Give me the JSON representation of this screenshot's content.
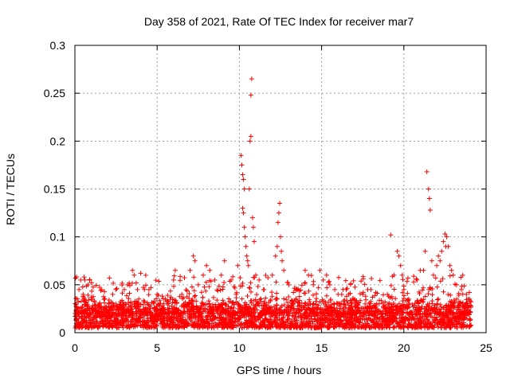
{
  "chart_data": {
    "type": "scatter",
    "title": "Day 358 of 2021, Rate Of TEC Index for receiver mar7",
    "xlabel": "GPS time / hours",
    "ylabel": "ROTI / TECUs",
    "xlim": [
      0,
      25
    ],
    "ylim": [
      0,
      0.3
    ],
    "xticks": [
      0,
      5,
      10,
      15,
      20,
      25
    ],
    "xtick_labels": [
      "0",
      "5",
      "10",
      "15",
      "20",
      "25"
    ],
    "yticks": [
      0,
      0.05,
      0.1,
      0.15,
      0.2,
      0.25,
      0.3
    ],
    "ytick_labels": [
      "0",
      "0.05",
      "0.1",
      "0.15",
      "0.2",
      "0.25",
      "0.3"
    ],
    "grid": true,
    "marker": "plus",
    "color": "#ff0000",
    "series": [
      {
        "name": "ROTI",
        "points": [
          [
            0.1,
            0.02
          ],
          [
            0.2,
            0.032
          ],
          [
            0.25,
            0.045
          ],
          [
            0.35,
            0.055
          ],
          [
            0.5,
            0.04
          ],
          [
            0.6,
            0.055
          ],
          [
            0.8,
            0.05
          ],
          [
            0.9,
            0.055
          ],
          [
            1.0,
            0.035
          ],
          [
            1.5,
            0.03
          ],
          [
            2.1,
            0.057
          ],
          [
            2.3,
            0.04
          ],
          [
            2.5,
            0.03
          ],
          [
            3.0,
            0.045
          ],
          [
            3.2,
            0.05
          ],
          [
            3.5,
            0.065
          ],
          [
            3.6,
            0.06
          ],
          [
            3.8,
            0.045
          ],
          [
            4.0,
            0.062
          ],
          [
            4.5,
            0.045
          ],
          [
            5.0,
            0.04
          ],
          [
            5.5,
            0.035
          ],
          [
            6.0,
            0.055
          ],
          [
            6.1,
            0.065
          ],
          [
            6.5,
            0.04
          ],
          [
            7.0,
            0.065
          ],
          [
            7.2,
            0.08
          ],
          [
            7.3,
            0.075
          ],
          [
            7.5,
            0.05
          ],
          [
            7.8,
            0.06
          ],
          [
            8.0,
            0.07
          ],
          [
            8.2,
            0.065
          ],
          [
            8.5,
            0.055
          ],
          [
            8.9,
            0.06
          ],
          [
            9.1,
            0.075
          ],
          [
            9.5,
            0.055
          ],
          [
            9.8,
            0.04
          ],
          [
            9.9,
            0.07
          ],
          [
            10.1,
            0.185
          ],
          [
            10.15,
            0.175
          ],
          [
            10.2,
            0.165
          ],
          [
            10.25,
            0.16
          ],
          [
            10.3,
            0.15
          ],
          [
            10.2,
            0.13
          ],
          [
            10.25,
            0.125
          ],
          [
            10.3,
            0.11
          ],
          [
            10.35,
            0.1
          ],
          [
            10.4,
            0.09
          ],
          [
            10.45,
            0.08
          ],
          [
            10.5,
            0.075
          ],
          [
            10.55,
            0.07
          ],
          [
            10.6,
            0.15
          ],
          [
            10.65,
            0.2
          ],
          [
            10.7,
            0.205
          ],
          [
            10.75,
            0.265
          ],
          [
            10.7,
            0.248
          ],
          [
            10.8,
            0.12
          ],
          [
            10.85,
            0.11
          ],
          [
            10.9,
            0.095
          ],
          [
            11.0,
            0.06
          ],
          [
            11.2,
            0.055
          ],
          [
            11.5,
            0.045
          ],
          [
            12.0,
            0.06
          ],
          [
            12.2,
            0.08
          ],
          [
            12.3,
            0.09
          ],
          [
            12.35,
            0.115
          ],
          [
            12.4,
            0.125
          ],
          [
            12.45,
            0.135
          ],
          [
            12.5,
            0.1
          ],
          [
            12.55,
            0.085
          ],
          [
            12.6,
            0.075
          ],
          [
            12.7,
            0.065
          ],
          [
            13.0,
            0.05
          ],
          [
            13.5,
            0.045
          ],
          [
            14.0,
            0.065
          ],
          [
            14.2,
            0.06
          ],
          [
            14.5,
            0.05
          ],
          [
            14.9,
            0.065
          ],
          [
            15.1,
            0.055
          ],
          [
            15.3,
            0.06
          ],
          [
            15.5,
            0.05
          ],
          [
            15.8,
            0.045
          ],
          [
            16.0,
            0.04
          ],
          [
            16.5,
            0.045
          ],
          [
            17.0,
            0.035
          ],
          [
            17.5,
            0.04
          ],
          [
            17.8,
            0.045
          ],
          [
            18.0,
            0.045
          ],
          [
            18.5,
            0.03
          ],
          [
            19.0,
            0.04
          ],
          [
            19.2,
            0.102
          ],
          [
            19.4,
            0.06
          ],
          [
            19.6,
            0.085
          ],
          [
            19.7,
            0.08
          ],
          [
            19.8,
            0.07
          ],
          [
            19.9,
            0.06
          ],
          [
            20.0,
            0.045
          ],
          [
            20.3,
            0.035
          ],
          [
            20.8,
            0.055
          ],
          [
            21.0,
            0.065
          ],
          [
            21.2,
            0.065
          ],
          [
            21.3,
            0.085
          ],
          [
            21.4,
            0.168
          ],
          [
            21.5,
            0.15
          ],
          [
            21.55,
            0.14
          ],
          [
            21.6,
            0.128
          ],
          [
            21.7,
            0.075
          ],
          [
            21.8,
            0.06
          ],
          [
            22.0,
            0.07
          ],
          [
            22.1,
            0.08
          ],
          [
            22.2,
            0.075
          ],
          [
            22.3,
            0.085
          ],
          [
            22.4,
            0.095
          ],
          [
            22.5,
            0.103
          ],
          [
            22.55,
            0.09
          ],
          [
            22.6,
            0.1
          ],
          [
            22.7,
            0.09
          ],
          [
            22.8,
            0.07
          ],
          [
            22.9,
            0.065
          ],
          [
            23.0,
            0.06
          ],
          [
            23.2,
            0.05
          ],
          [
            23.5,
            0.045
          ],
          [
            23.8,
            0.04
          ],
          [
            24.0,
            0.035
          ]
        ],
        "baseline_band": [
          0.005,
          0.025
        ]
      }
    ]
  }
}
